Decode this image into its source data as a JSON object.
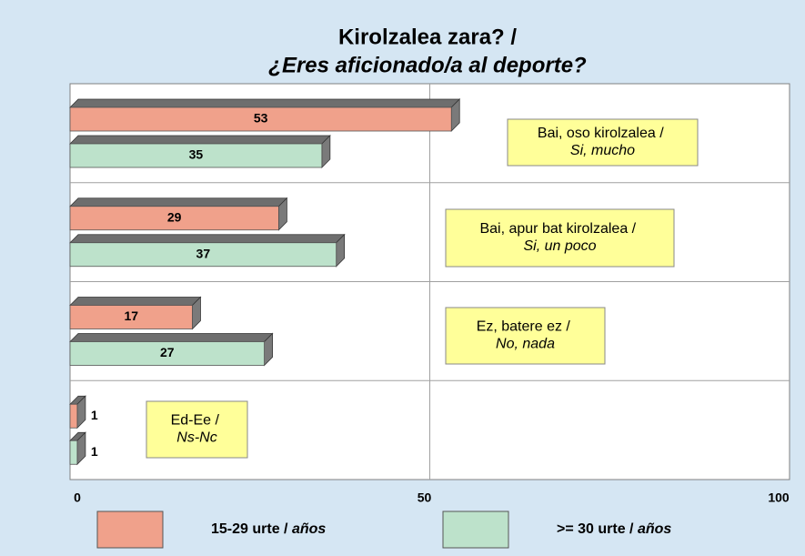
{
  "chart_data": {
    "type": "hbar",
    "title": "Kirolzalea zara? /",
    "subtitle": "¿Eres aficionado/a al deporte?",
    "categories": [
      "Bai, oso kirolzalea / Si, mucho",
      "Bai, apur bat kirolzalea / Si, un poco",
      "Ez, batere ez / No, nada",
      "Ed-Ee / Ns-Nc"
    ],
    "series": [
      {
        "name": "15-29 urte / años",
        "color": "#f0a18b",
        "values": [
          53,
          29,
          17,
          1
        ]
      },
      {
        "name": ">= 30 urte / años",
        "color": "#bde2cb",
        "values": [
          35,
          37,
          27,
          1
        ]
      }
    ],
    "xlim": [
      0,
      100
    ],
    "xticks": [
      0,
      50,
      100
    ],
    "grid": true
  }
}
